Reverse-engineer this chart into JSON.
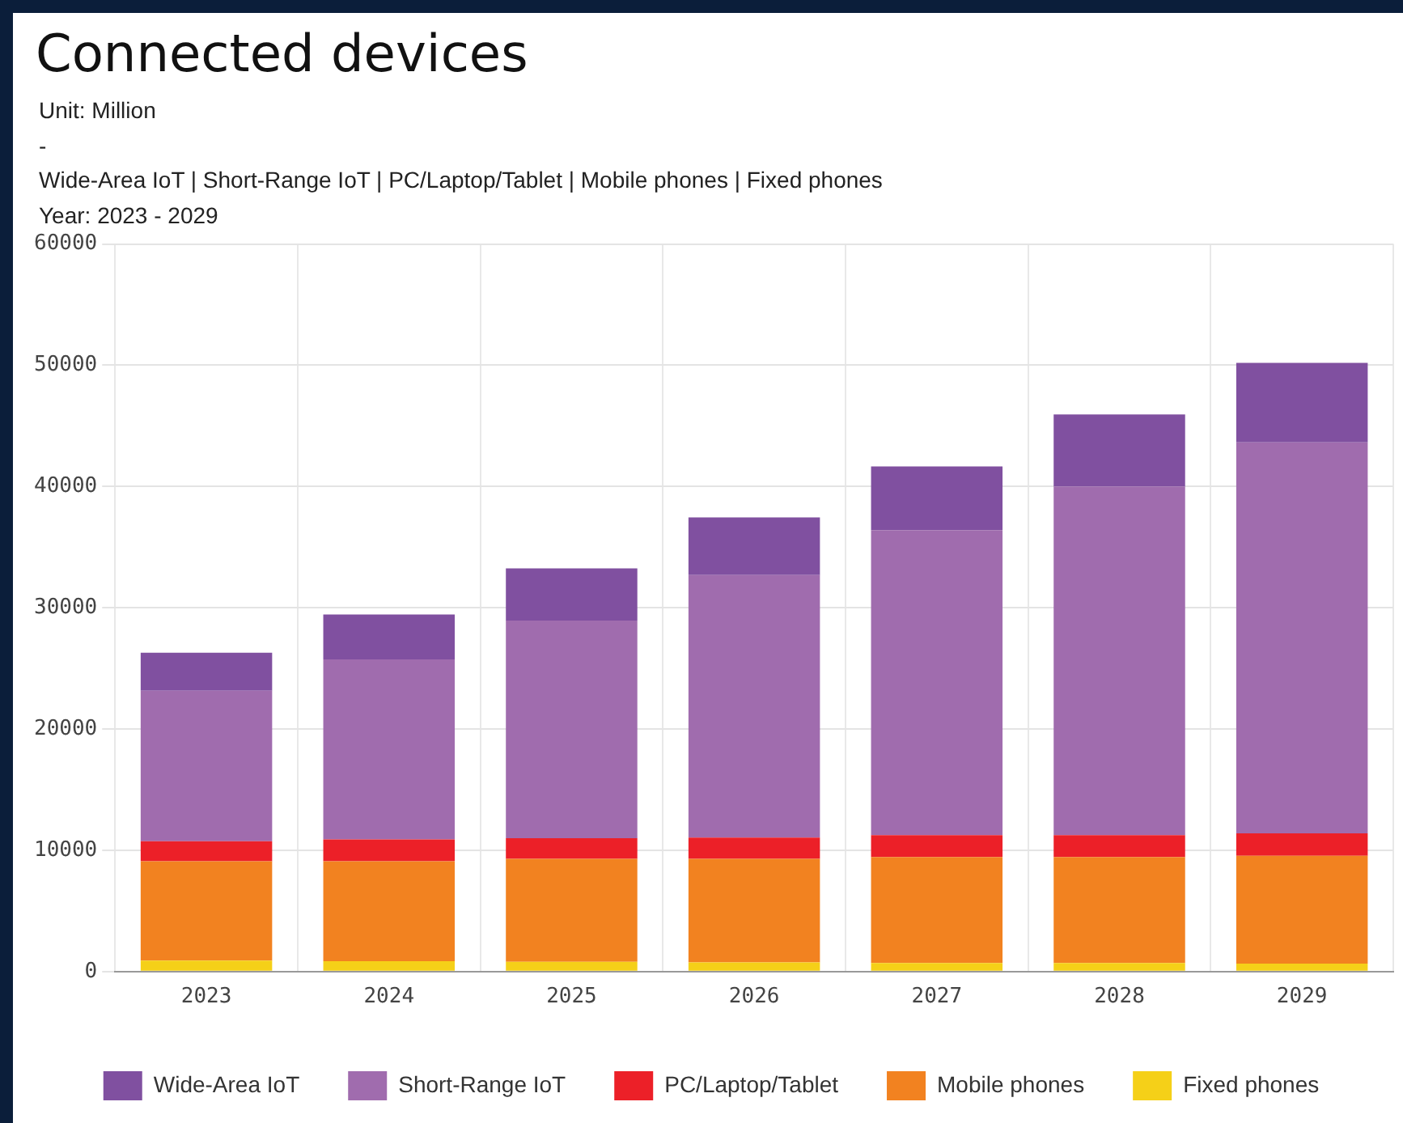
{
  "chart_data": {
    "type": "bar",
    "stacked": true,
    "title": "Connected devices",
    "subtitle": "Unit: Million\n-\nWide-Area IoT | Short-Range IoT | PC/Laptop/Tablet | Mobile phones | Fixed phones\nYear: 2023 - 2029",
    "categories": [
      "2023",
      "2024",
      "2025",
      "2026",
      "2027",
      "2028",
      "2029"
    ],
    "series": [
      {
        "name": "Fixed phones",
        "color": "#f5d018",
        "values": [
          900,
          850,
          800,
          750,
          700,
          700,
          650
        ]
      },
      {
        "name": "Mobile phones",
        "color": "#f28220",
        "values": [
          8200,
          8250,
          8500,
          8550,
          8750,
          8750,
          8900
        ]
      },
      {
        "name": "PC/Laptop/Tablet",
        "color": "#ec2028",
        "values": [
          1650,
          1800,
          1700,
          1750,
          1800,
          1800,
          1850
        ]
      },
      {
        "name": "Short-Range IoT",
        "color": "#a06cae",
        "values": [
          12400,
          14850,
          17950,
          21650,
          25150,
          28750,
          32250
        ]
      },
      {
        "name": "Wide-Area IoT",
        "color": "#8050a0",
        "values": [
          3150,
          3700,
          4300,
          4750,
          5250,
          5950,
          6550
        ]
      }
    ],
    "ylim": [
      0,
      60000
    ],
    "yticks": [
      0,
      10000,
      20000,
      30000,
      40000,
      50000,
      60000
    ],
    "grid": true,
    "legend": "bottom"
  }
}
